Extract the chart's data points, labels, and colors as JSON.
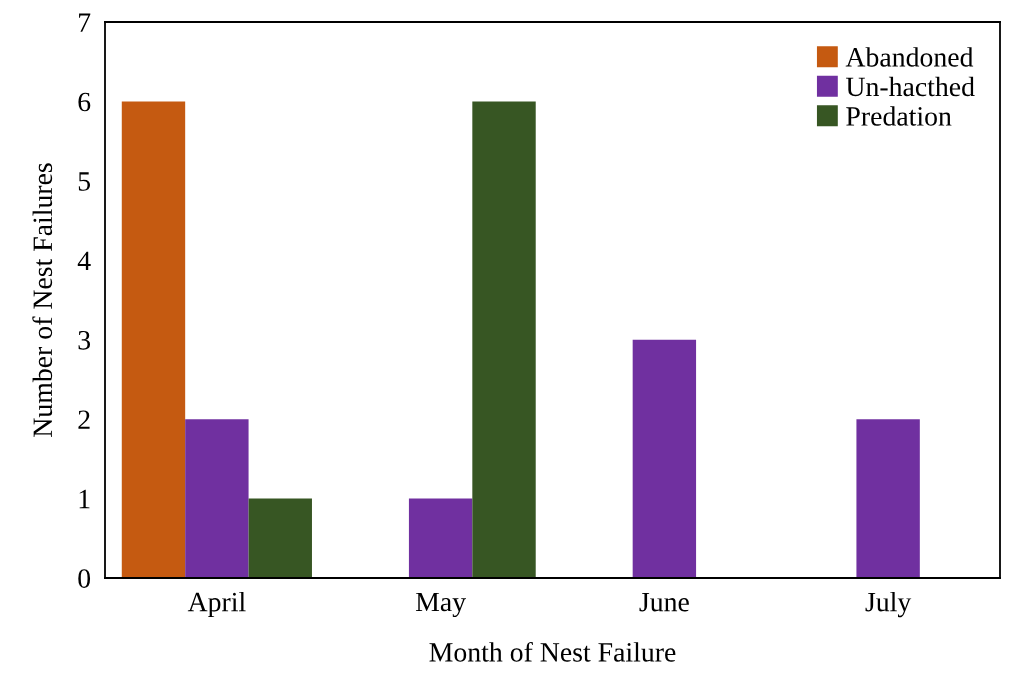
{
  "chart_data": {
    "type": "bar",
    "xlabel": "Month of Nest Failure",
    "ylabel": "Number of Nest Failures",
    "categories": [
      "April",
      "May",
      "June",
      "July"
    ],
    "series": [
      {
        "name": "Abandoned",
        "color": "#c55a11",
        "values": [
          6,
          0,
          0,
          0
        ]
      },
      {
        "name": "Un-hacthed",
        "color": "#7030a0",
        "values": [
          2,
          1,
          3,
          2
        ]
      },
      {
        "name": "Predation",
        "color": "#375623",
        "values": [
          1,
          6,
          0,
          0
        ]
      }
    ],
    "ylim": [
      0,
      7
    ],
    "yticks": [
      0,
      1,
      2,
      3,
      4,
      5,
      6,
      7
    ],
    "grid": false,
    "legend": "top right"
  }
}
